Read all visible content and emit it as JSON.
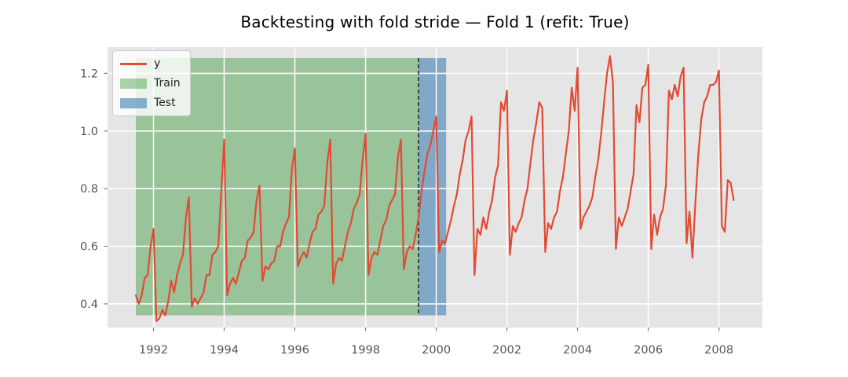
{
  "chart_data": {
    "type": "line",
    "title": "Backtesting with fold stride — Fold 1 (refit: True)",
    "x_start": "1991-07",
    "x_freq": "monthly",
    "xlim": [
      1990.7,
      2009.23
    ],
    "ylim": [
      0.318,
      1.291
    ],
    "xticks": [
      "1992",
      "1994",
      "1996",
      "1998",
      "2000",
      "2002",
      "2004",
      "2006",
      "2008"
    ],
    "yticks": [
      "0.4",
      "0.6",
      "0.8",
      "1.0",
      "1.2"
    ],
    "grid": true,
    "background": "#E5E5E5",
    "gridline_color": "#FFFFFF",
    "tick_label_color": "#555555",
    "series": [
      {
        "name": "y",
        "color": "#E24A33",
        "values": [
          0.43,
          0.4,
          0.43,
          0.49,
          0.5,
          0.6,
          0.66,
          0.34,
          0.35,
          0.38,
          0.36,
          0.41,
          0.48,
          0.44,
          0.5,
          0.54,
          0.57,
          0.7,
          0.77,
          0.39,
          0.42,
          0.4,
          0.42,
          0.44,
          0.5,
          0.5,
          0.57,
          0.58,
          0.6,
          0.79,
          0.97,
          0.43,
          0.47,
          0.49,
          0.47,
          0.51,
          0.55,
          0.56,
          0.62,
          0.63,
          0.65,
          0.76,
          0.81,
          0.48,
          0.53,
          0.52,
          0.54,
          0.55,
          0.6,
          0.6,
          0.65,
          0.68,
          0.7,
          0.87,
          0.94,
          0.53,
          0.56,
          0.58,
          0.56,
          0.61,
          0.65,
          0.66,
          0.71,
          0.72,
          0.74,
          0.89,
          0.97,
          0.47,
          0.54,
          0.56,
          0.55,
          0.6,
          0.65,
          0.68,
          0.73,
          0.75,
          0.78,
          0.9,
          0.99,
          0.5,
          0.56,
          0.58,
          0.57,
          0.62,
          0.67,
          0.69,
          0.74,
          0.76,
          0.78,
          0.91,
          0.97,
          0.52,
          0.58,
          0.6,
          0.59,
          0.64,
          0.7,
          0.79,
          0.86,
          0.92,
          0.95,
          1.0,
          1.05,
          0.58,
          0.62,
          0.61,
          0.65,
          0.69,
          0.74,
          0.78,
          0.85,
          0.9,
          0.97,
          1.0,
          1.05,
          0.5,
          0.66,
          0.64,
          0.7,
          0.66,
          0.72,
          0.76,
          0.84,
          0.88,
          1.1,
          1.07,
          1.14,
          0.57,
          0.67,
          0.65,
          0.68,
          0.7,
          0.76,
          0.8,
          0.89,
          0.97,
          1.03,
          1.1,
          1.08,
          0.58,
          0.68,
          0.66,
          0.7,
          0.72,
          0.79,
          0.84,
          0.92,
          1.0,
          1.15,
          1.07,
          1.22,
          0.66,
          0.7,
          0.72,
          0.74,
          0.77,
          0.84,
          0.9,
          0.99,
          1.1,
          1.2,
          1.26,
          1.17,
          0.59,
          0.7,
          0.67,
          0.7,
          0.73,
          0.79,
          0.85,
          1.09,
          1.03,
          1.15,
          1.16,
          1.23,
          0.59,
          0.71,
          0.64,
          0.7,
          0.73,
          0.81,
          1.14,
          1.11,
          1.16,
          1.12,
          1.19,
          1.22,
          0.61,
          0.72,
          0.56,
          0.75,
          0.92,
          1.04,
          1.1,
          1.12,
          1.16,
          1.16,
          1.17,
          1.21,
          0.67,
          0.65,
          0.83,
          0.82,
          0.76
        ]
      }
    ],
    "regions": [
      {
        "label": "Train",
        "color": "#008000",
        "alpha": 0.33,
        "x_from": 1991.5,
        "x_to": 1999.5
      },
      {
        "label": "Test",
        "color": "#4682B4",
        "alpha": 0.62,
        "x_from": 1999.5,
        "x_to": 2000.28
      }
    ],
    "vline": {
      "x": 1999.5,
      "color": "#2a2a2a",
      "dash": "5 3"
    },
    "legend": {
      "position": "upper left",
      "entries": [
        {
          "label": "y",
          "type": "line",
          "color": "#E24A33"
        },
        {
          "label": "Train",
          "type": "patch",
          "color": "rgba(0,128,0,0.33)"
        },
        {
          "label": "Test",
          "type": "patch",
          "color": "rgba(70,130,180,0.62)"
        }
      ]
    }
  }
}
